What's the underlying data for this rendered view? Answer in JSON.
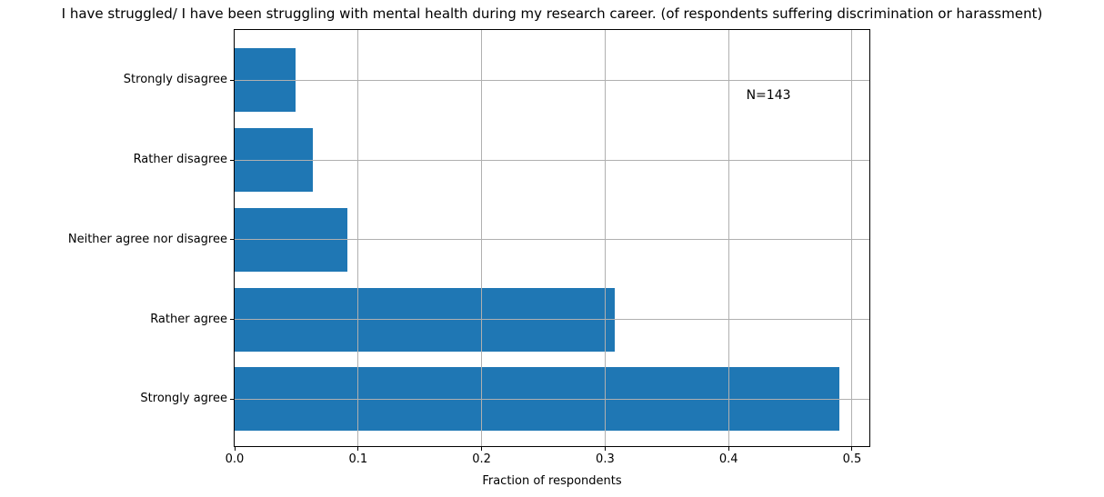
{
  "chart_data": {
    "type": "bar",
    "orientation": "horizontal",
    "title": "I have struggled/ I have been struggling with mental health during my research career. (of respondents suffering discrimination or harassment)",
    "categories_top_to_bottom": [
      "Strongly disagree",
      "Rather disagree",
      "Neither agree nor disagree",
      "Rather agree",
      "Strongly agree"
    ],
    "values": [
      0.049,
      0.063,
      0.091,
      0.308,
      0.49
    ],
    "xlabel": "Fraction of respondents",
    "ylabel": "",
    "xlim": [
      0,
      0.514
    ],
    "xticks": {
      "values": [
        0,
        0.1,
        0.2,
        0.3,
        0.4,
        0.5
      ],
      "labels": [
        "0.0",
        "0.1",
        "0.2",
        "0.3",
        "0.4",
        "0.5"
      ]
    },
    "grid": true,
    "grid_above_bars": true,
    "legend": false,
    "annotation": {
      "text": "N=143",
      "axes_fraction_x": 0.806,
      "axes_fraction_y": 0.14
    },
    "colors": {
      "bar": "#1f77b4",
      "grid": "#b0b0b0",
      "spine": "#000000",
      "text": "#000000",
      "background": "#ffffff"
    }
  }
}
